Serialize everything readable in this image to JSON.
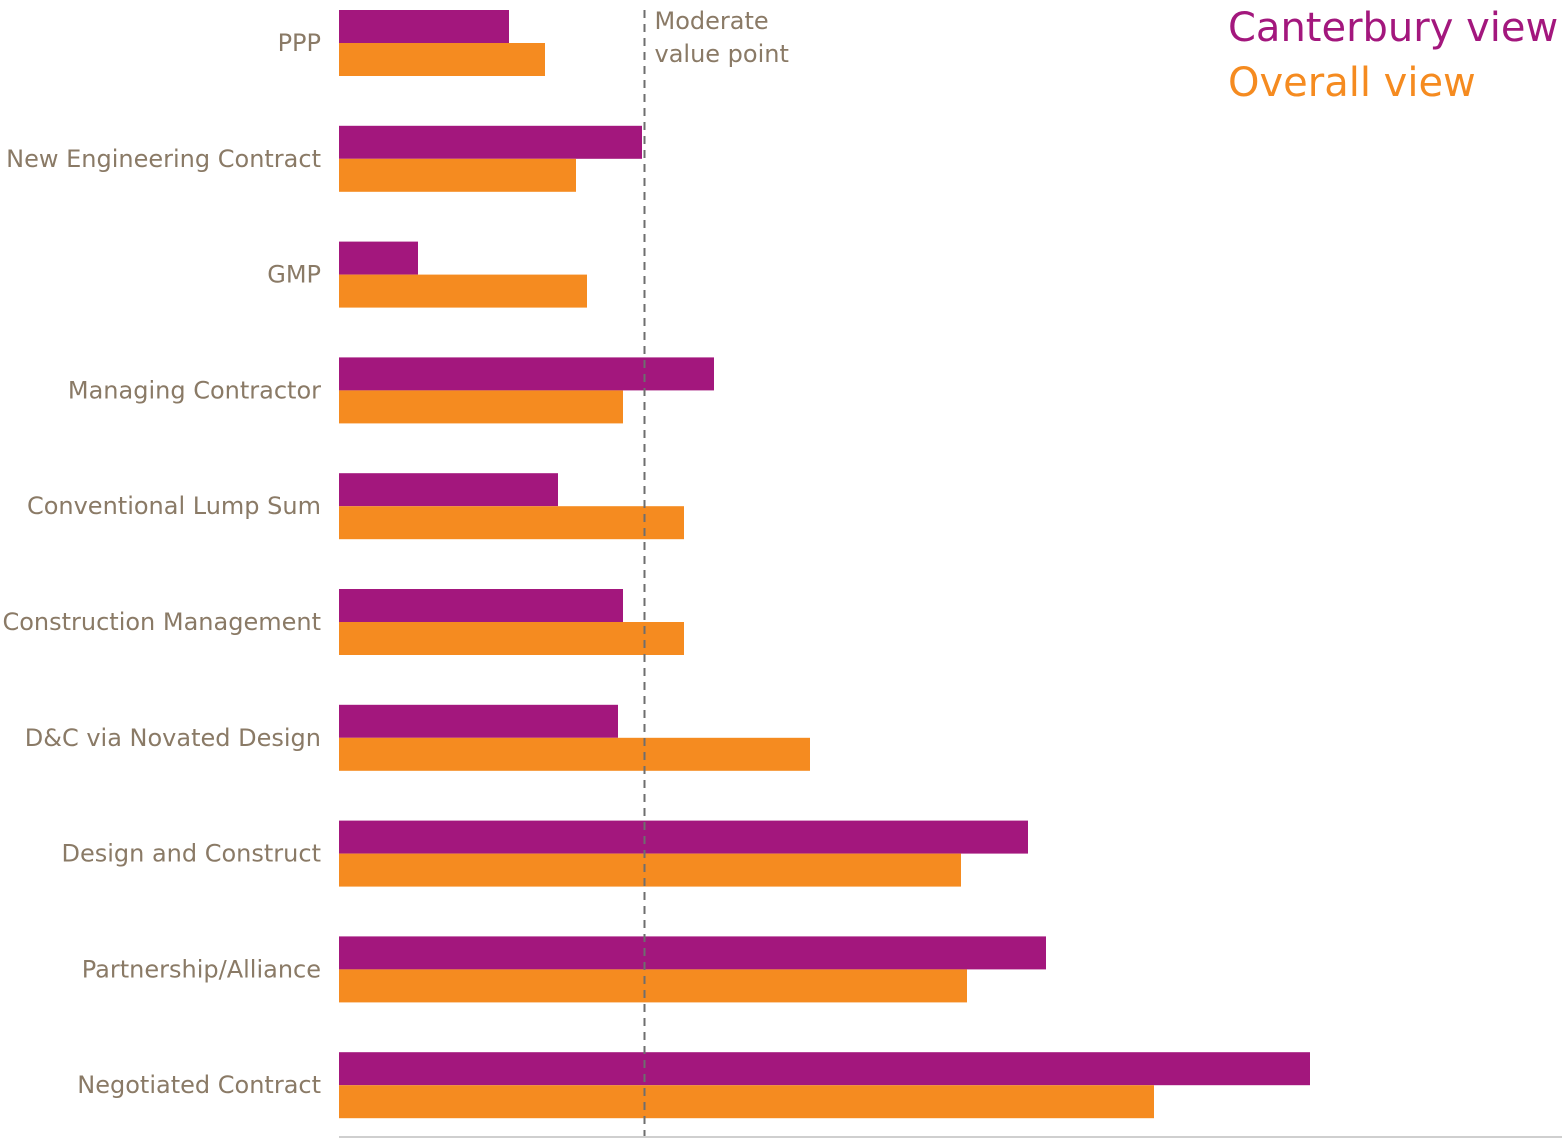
{
  "chart_data": {
    "type": "bar",
    "orientation": "horizontal",
    "categories": [
      "PPP",
      "New Engineering Contract",
      "GMP",
      "Managing Contractor",
      "Conventional Lump Sum",
      "Construction Management",
      "D&C via Novated Design",
      "Design and Construct",
      "Partnership/Alliance",
      "Negotiated Contract"
    ],
    "series": [
      {
        "name": "Canterbury view",
        "color": "#a3177d",
        "values": [
          1.7,
          3.03,
          0.79,
          3.75,
          2.19,
          2.84,
          2.79,
          6.89,
          7.07,
          9.71
        ]
      },
      {
        "name": "Overall view",
        "color": "#f58b20",
        "values": [
          2.06,
          2.37,
          2.48,
          2.84,
          3.45,
          3.45,
          4.71,
          6.22,
          6.28,
          8.15
        ]
      }
    ],
    "xlim": [
      0,
      12.2
    ],
    "reference_line": {
      "value": 3.05,
      "label_line1": "Moderate",
      "label_line2": "value point"
    },
    "legend_position": "top-right",
    "grid": false
  },
  "colors": {
    "label_text": "#8a7a66",
    "reference_line": "#6e6e6e",
    "axis": "#cfcfcf"
  }
}
